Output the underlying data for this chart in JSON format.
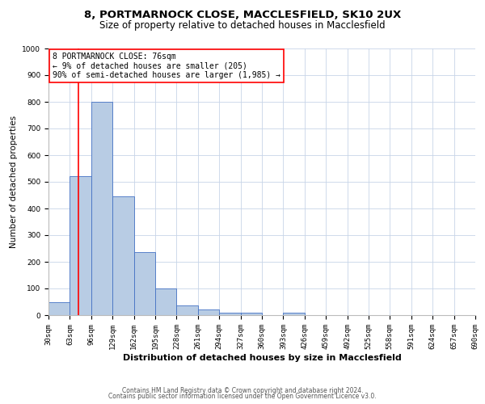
{
  "title_line1": "8, PORTMARNOCK CLOSE, MACCLESFIELD, SK10 2UX",
  "title_line2": "Size of property relative to detached houses in Macclesfield",
  "xlabel": "Distribution of detached houses by size in Macclesfield",
  "ylabel": "Number of detached properties",
  "bar_values": [
    50,
    520,
    800,
    445,
    237,
    100,
    35,
    20,
    10,
    10,
    0,
    8,
    0,
    0,
    0,
    0,
    0,
    0,
    0,
    0
  ],
  "bin_edges": [
    30,
    63,
    96,
    129,
    162,
    195,
    228,
    261,
    294,
    327,
    360,
    393,
    426,
    459,
    492,
    525,
    558,
    591,
    624,
    657,
    690
  ],
  "bar_color": "#b8cce4",
  "bar_edge_color": "#4472c4",
  "red_line_x": 76,
  "ylim": [
    0,
    1000
  ],
  "yticks": [
    0,
    100,
    200,
    300,
    400,
    500,
    600,
    700,
    800,
    900,
    1000
  ],
  "annotation_line1": "8 PORTMARNOCK CLOSE: 76sqm",
  "annotation_line2": "← 9% of detached houses are smaller (205)",
  "annotation_line3": "90% of semi-detached houses are larger (1,985) →",
  "footer_line1": "Contains HM Land Registry data © Crown copyright and database right 2024.",
  "footer_line2": "Contains public sector information licensed under the Open Government Licence v3.0.",
  "grid_color": "#c8d4e8",
  "title1_fontsize": 9.5,
  "title2_fontsize": 8.5,
  "xlabel_fontsize": 8,
  "ylabel_fontsize": 7.5,
  "tick_fontsize": 6.5,
  "annot_fontsize": 7,
  "footer_fontsize": 5.5
}
